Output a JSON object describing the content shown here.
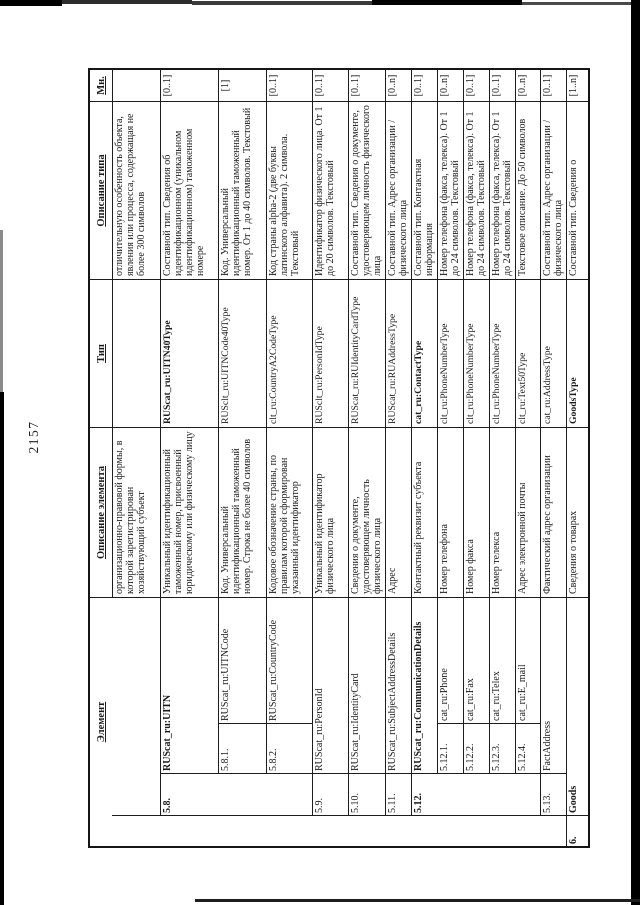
{
  "page": {
    "number": "2157"
  },
  "table": {
    "headers": {
      "element": "Элемент",
      "element_desc": "Описание элемента",
      "type": "Тип",
      "type_desc": "Описание типа",
      "mult": "Мн."
    },
    "rows": [
      {
        "num": "",
        "name": "",
        "level": 0,
        "bold": false,
        "desc": "организационно-правовой формы, в которой зарегистрирован хозяйствующий субъект",
        "type": "",
        "type_desc": "отличительную особенность объекта, явления или процесса, содержащая не более 300 символов",
        "mult": ""
      },
      {
        "num": "5.8.",
        "name": "RUScat_ru:UITN",
        "level": 2,
        "bold": true,
        "desc": "Уникальный идентификационный таможенный номер, присвоенный юридическому или физическому лицу",
        "type": "RUScat_ru:UITN40Type",
        "type_desc": "Составной тип. Сведения об идентификационном (уникальном идентификационном) таможенном номере",
        "mult": "[0..1]"
      },
      {
        "num": "5.8.1.",
        "name": "RUScat_ru:UITNCode",
        "level": 3,
        "bold": false,
        "desc": "Код. Универсальный идентификационный таможенный номер. Строка не более 40 символов",
        "type": "RUSclt_ru:UITNCode40Type",
        "type_desc": "Код. Универсальный идентификационный таможенный номер. От 1 до 40 символов. Текстовый",
        "mult": "[1]"
      },
      {
        "num": "5.8.2.",
        "name": "RUScat_ru:CountryCode",
        "level": 3,
        "bold": false,
        "desc": "Кодовое обозначение страны, по правилам которой сформирован указанный идентификатор",
        "type": "clt_ru:CountryA2CodeType",
        "type_desc": "Код страны alpha-2 (две буквы латинского алфавита). 2 символа. Текстовый",
        "mult": "[0..1]"
      },
      {
        "num": "5.9.",
        "name": "RUScat_ru:PersonId",
        "level": 2,
        "bold": false,
        "desc": "Уникальный идентификатор физического лица",
        "type": "RUSclt_ru:PersonIdType",
        "type_desc": "Идентификатор физического лица. От 1 до 20 символов. Текстовый",
        "mult": "[0..1]"
      },
      {
        "num": "5.10.",
        "name": "RUScat_ru:IdentityCard",
        "level": 2,
        "bold": false,
        "desc": "Сведения о документе, удостоверяющем личность физического лица",
        "type": "RUScat_ru:RUIdentityCardType",
        "type_desc": "Составной тип. Сведения о документе, удостоверяющем личность физического лица",
        "mult": "[0..1]"
      },
      {
        "num": "5.11.",
        "name": "RUScat_ru:SubjectAddressDetails",
        "level": 2,
        "bold": false,
        "desc": "Адрес",
        "type": "RUScat_ru:RUAddressType",
        "type_desc": "Составной тип. Адрес организации / физического лица",
        "mult": "[0..n]"
      },
      {
        "num": "5.12.",
        "name": "RUScat_ru:CommunicationDetails",
        "level": 2,
        "bold": true,
        "desc": "Контактный реквизит субъекта",
        "type": "cat_ru:ContactType",
        "type_desc": "Составной тип. Контактная информация",
        "mult": "[0..1]"
      },
      {
        "num": "5.12.1.",
        "name": "cat_ru:Phone",
        "level": 3,
        "bold": false,
        "desc": "Номер телефона",
        "type": "clt_ru:PhoneNumberType",
        "type_desc": "Номер телефона (факса, телекса). От 1 до 24 символов. Текстовый",
        "mult": "[0..n]"
      },
      {
        "num": "5.12.2.",
        "name": "cat_ru:Fax",
        "level": 3,
        "bold": false,
        "desc": "Номер факса",
        "type": "clt_ru:PhoneNumberType",
        "type_desc": "Номер телефона (факса, телекса). От 1 до 24 символов. Текстовый",
        "mult": "[0..1]"
      },
      {
        "num": "5.12.3.",
        "name": "cat_ru:Telex",
        "level": 3,
        "bold": false,
        "desc": "Номер телекса",
        "type": "clt_ru:PhoneNumberType",
        "type_desc": "Номер телефона (факса, телекса). От 1 до 24 символов. Текстовый",
        "mult": "[0..1]"
      },
      {
        "num": "5.12.4.",
        "name": "cat_ru:E_mail",
        "level": 3,
        "bold": false,
        "desc": "Адрес электронной почты",
        "type": "clt_ru:Text50Type",
        "type_desc": "Текстовое описание. До 50 символов",
        "mult": "[0..n]"
      },
      {
        "num": "5.13.",
        "name": "FactAddress",
        "level": 2,
        "bold": false,
        "desc": "Фактический адрес организации",
        "type": "cat_ru:AddressType",
        "type_desc": "Составной тип. Адрес организации / физического лица",
        "mult": "[0..1]"
      },
      {
        "num": "6.",
        "name": "Goods",
        "level": 1,
        "bold": true,
        "desc": "Сведения о товарах",
        "type": "GoodsType",
        "type_desc": "Составной тип. Сведения о",
        "mult": "[1..n]"
      }
    ]
  }
}
